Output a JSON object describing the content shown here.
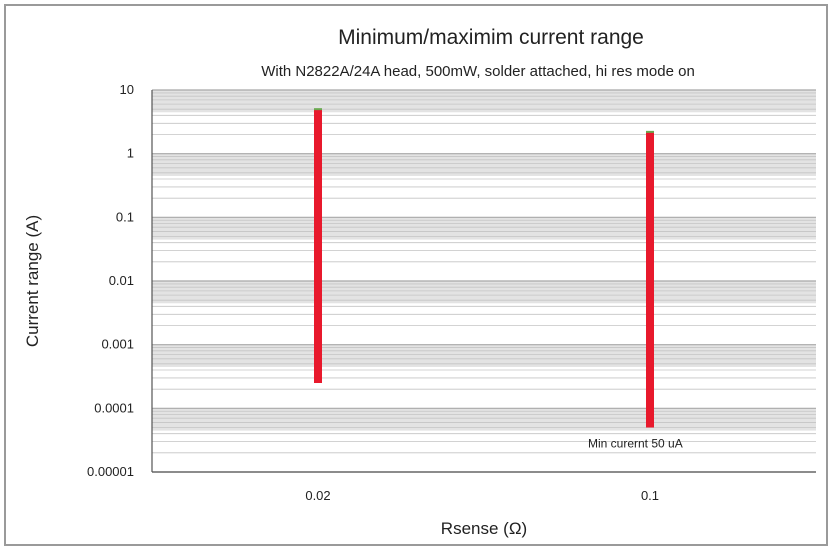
{
  "chart_data": {
    "type": "bar",
    "title": "Minimum/maximim current range",
    "subtitle": "With N2822A/24A head, 500mW, solder attached, hi res mode on",
    "xlabel": "Rsense (Ω)",
    "ylabel": "Current range (A)",
    "y_scale": "log",
    "ylim": [
      1e-05,
      10
    ],
    "y_ticks": [
      "10",
      "1",
      "0.1",
      "0.01",
      "0.001",
      "0.0001",
      "0.00001"
    ],
    "categories": [
      "0.02",
      "0.1"
    ],
    "series": [
      {
        "min": [
          0.00025,
          5e-05
        ],
        "max": [
          5,
          2.2
        ]
      }
    ],
    "annotations": [
      {
        "text": "Min curernt 50 uA",
        "category": "0.1",
        "value": 5e-05
      }
    ],
    "grid": true,
    "legend": "none",
    "colors": {
      "bar": "#e8192c",
      "bar_cap": "#6aa84f",
      "grid": "#a8a8a8",
      "band": "#e3e3e3"
    }
  }
}
